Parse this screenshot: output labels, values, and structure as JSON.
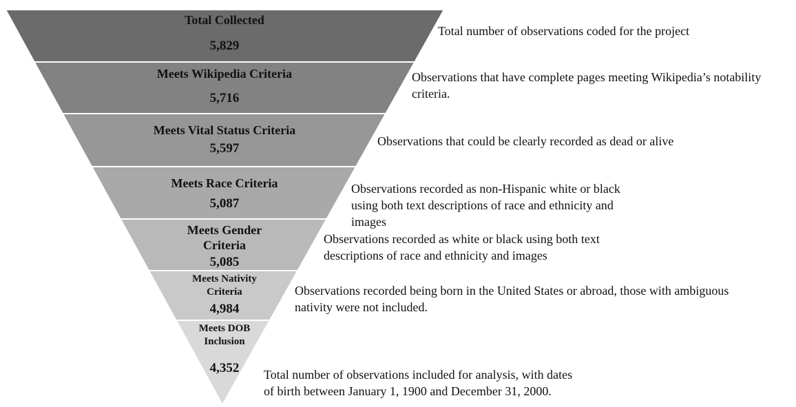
{
  "stages": [
    {
      "label": "Total Collected",
      "count": "5,829",
      "description": "Total number of observations coded for the project"
    },
    {
      "label": "Meets Wikipedia Criteria",
      "count": "5,716",
      "description": "Observations that have complete pages meeting Wikipedia’s notability criteria."
    },
    {
      "label": "Meets Vital Status Criteria",
      "count": "5,597",
      "description": "Observations that could be clearly recorded as dead or alive"
    },
    {
      "label": "Meets Race Criteria",
      "count": "5,087",
      "description": "Observations recorded as non-Hispanic white or black using both text descriptions of race and ethnicity and images"
    },
    {
      "label": "Meets Gender Criteria",
      "count": "5,085",
      "description": "Observations recorded as white or black using both text descriptions of race and ethnicity and images"
    },
    {
      "label": "Meets Nativity Criteria",
      "count": "4,984",
      "description": "Observations recorded being born in the United States or abroad, those with ambiguous nativity were not included."
    },
    {
      "label": "Meets DOB Inclusion",
      "count": "4,352",
      "description": "Total number of observations included for analysis, with dates of birth between January 1, 1900 and December 31, 2000."
    }
  ]
}
